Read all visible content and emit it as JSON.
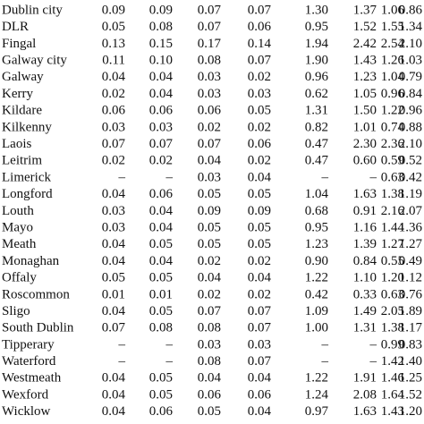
{
  "table": {
    "rows": [
      [
        "Dublin city",
        "0.09",
        "0.09",
        "0.07",
        "0.07",
        "1.30",
        "1.37",
        "1.06",
        "0.86"
      ],
      [
        "DLR",
        "0.05",
        "0.08",
        "0.07",
        "0.06",
        "0.95",
        "1.52",
        "1.55",
        "1.34"
      ],
      [
        "Fingal",
        "0.13",
        "0.15",
        "0.17",
        "0.14",
        "1.94",
        "2.42",
        "2.54",
        "2.10"
      ],
      [
        "Galway city",
        "0.11",
        "0.10",
        "0.08",
        "0.07",
        "1.90",
        "1.43",
        "1.26",
        "1.03"
      ],
      [
        "Galway",
        "0.04",
        "0.04",
        "0.03",
        "0.02",
        "0.96",
        "1.23",
        "1.04",
        "0.79"
      ],
      [
        "Kerry",
        "0.02",
        "0.04",
        "0.03",
        "0.03",
        "0.62",
        "1.05",
        "0.96",
        "0.84"
      ],
      [
        "Kildare",
        "0.06",
        "0.06",
        "0.06",
        "0.05",
        "1.31",
        "1.50",
        "1.22",
        "0.96"
      ],
      [
        "Kilkenny",
        "0.03",
        "0.03",
        "0.02",
        "0.02",
        "0.82",
        "1.01",
        "0.74",
        "0.88"
      ],
      [
        "Laois",
        "0.07",
        "0.07",
        "0.07",
        "0.06",
        "0.47",
        "2.30",
        "2.36",
        "2.10"
      ],
      [
        "Leitrim",
        "0.02",
        "0.02",
        "0.04",
        "0.02",
        "0.47",
        "0.60",
        "0.59",
        "0.52"
      ],
      [
        "Limerick",
        "–",
        "–",
        "0.03",
        "0.04",
        "–",
        "–",
        "0.63",
        "0.42"
      ],
      [
        "Longford",
        "0.04",
        "0.06",
        "0.05",
        "0.05",
        "1.04",
        "1.63",
        "1.38",
        "1.19"
      ],
      [
        "Louth",
        "0.03",
        "0.04",
        "0.09",
        "0.09",
        "0.68",
        "0.91",
        "2.16",
        "2.07"
      ],
      [
        "Mayo",
        "0.03",
        "0.04",
        "0.05",
        "0.05",
        "0.95",
        "1.16",
        "1.44",
        "1.36"
      ],
      [
        "Meath",
        "0.04",
        "0.05",
        "0.05",
        "0.05",
        "1.23",
        "1.39",
        "1.27",
        "1.27"
      ],
      [
        "Monaghan",
        "0.04",
        "0.04",
        "0.02",
        "0.02",
        "0.90",
        "0.84",
        "0.55",
        "0.49"
      ],
      [
        "Offaly",
        "0.05",
        "0.05",
        "0.04",
        "0.04",
        "1.22",
        "1.10",
        "1.20",
        "1.12"
      ],
      [
        "Roscommon",
        "0.01",
        "0.01",
        "0.02",
        "0.02",
        "0.42",
        "0.33",
        "0.63",
        "0.76"
      ],
      [
        "Sligo",
        "0.04",
        "0.05",
        "0.07",
        "0.07",
        "1.09",
        "1.49",
        "2.05",
        "1.89"
      ],
      [
        "South Dublin",
        "0.07",
        "0.08",
        "0.08",
        "0.07",
        "1.00",
        "1.31",
        "1.38",
        "1.17"
      ],
      [
        "Tipperary",
        "–",
        "–",
        "0.03",
        "0.03",
        "–",
        "–",
        "0.99",
        "0.83"
      ],
      [
        "Waterford",
        "–",
        "–",
        "0.08",
        "0.07",
        "–",
        "–",
        "1.42",
        "1.40"
      ],
      [
        "Westmeath",
        "0.04",
        "0.05",
        "0.04",
        "0.04",
        "1.22",
        "1.91",
        "1.46",
        "1.25"
      ],
      [
        "Wexford",
        "0.04",
        "0.05",
        "0.06",
        "0.06",
        "1.24",
        "2.08",
        "1.64",
        "1.52"
      ],
      [
        "Wicklow",
        "0.04",
        "0.06",
        "0.05",
        "0.04",
        "0.97",
        "1.63",
        "1.43",
        "1.20"
      ]
    ]
  }
}
